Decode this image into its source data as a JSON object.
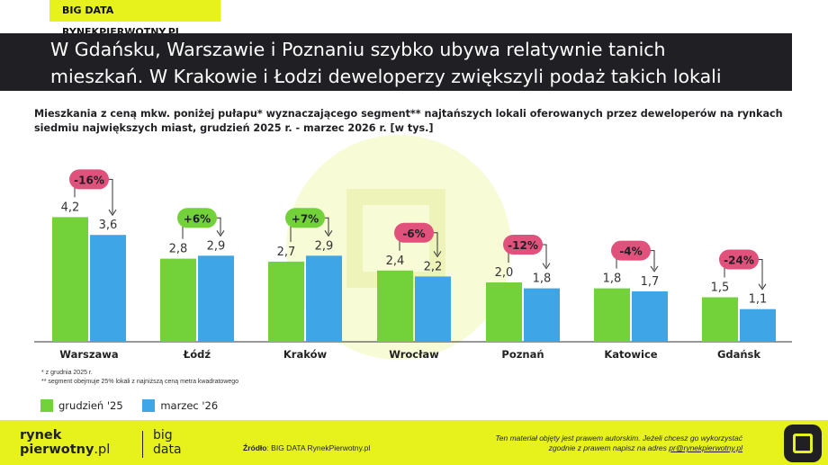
{
  "brand_tag": "BIG DATA RYNEKPIERWOTNY.PL",
  "headline": {
    "line1": "W Gdańsku, Warszawie i Poznaniu szybko ubywa relatywnie tanich",
    "line2": "mieszkań. W Krakowie i Łodzi deweloperzy zwiększyli podaż takich lokali"
  },
  "chart_data": {
    "type": "bar",
    "title": "Mieszkania z ceną mkw. poniżej pułapu* wyznaczającego segment** najtańszych lokali oferowanych przez deweloperów na rynkach siedmiu największych miast, grudzień 2025 r. - marzec 2026 r. [w tys.]",
    "categories": [
      "Warszawa",
      "Łódź",
      "Kraków",
      "Wrocław",
      "Poznań",
      "Katowice",
      "Gdańsk"
    ],
    "series": [
      {
        "name": "grudzień '25",
        "color": "#73d13a",
        "values": [
          4.2,
          2.8,
          2.7,
          2.4,
          2.0,
          1.8,
          1.5
        ],
        "labels": [
          "4,2",
          "2,8",
          "2,7",
          "2,4",
          "2,0",
          "1,8",
          "1,5"
        ]
      },
      {
        "name": "marzec '26",
        "color": "#3ea6e6",
        "values": [
          3.6,
          2.9,
          2.9,
          2.2,
          1.8,
          1.7,
          1.1
        ],
        "labels": [
          "3,6",
          "2,9",
          "2,9",
          "2,2",
          "1,8",
          "1,7",
          "1,1"
        ]
      }
    ],
    "changes": [
      {
        "label": "-16%",
        "direction": "down"
      },
      {
        "label": "+6%",
        "direction": "up"
      },
      {
        "label": "+7%",
        "direction": "up"
      },
      {
        "label": "-6%",
        "direction": "down"
      },
      {
        "label": "-12%",
        "direction": "down"
      },
      {
        "label": "-4%",
        "direction": "down"
      },
      {
        "label": "-24%",
        "direction": "down"
      }
    ],
    "change_colors": {
      "down": "#e0517c",
      "up": "#73d13a"
    },
    "ylim": [
      0,
      4.5
    ],
    "legend": "bottom-left"
  },
  "footnotes": {
    "note1": "* z grudnia 2025 r.",
    "note2": "** segment obejmuje 25% lokali z najniższą ceną metra kwadratowego"
  },
  "footer": {
    "logo_line1": "rynek",
    "logo_line2_bold": "pierwotny",
    "logo_line2_suffix": ".pl",
    "logo2_line1": "big",
    "logo2_line2": "data",
    "source_label": "Źródło",
    "source_text": ": BIG DATA RynekPierwotny.pl",
    "copyright_line1": "Ten materiał objęty jest prawem autorskim. Jeżeli chcesz go wykorzystać",
    "copyright_line2": "zgodnie z prawem napisz na adres",
    "copyright_email": "pr@rynekpierwotny.pl"
  }
}
